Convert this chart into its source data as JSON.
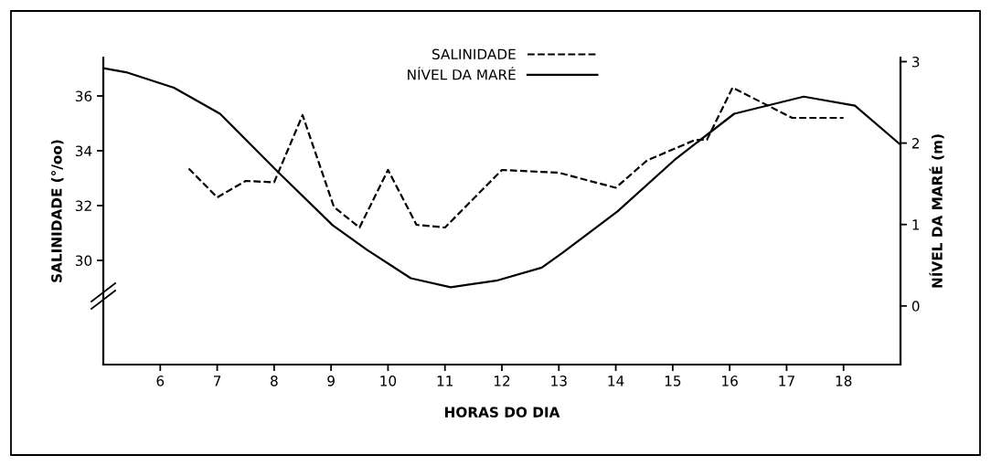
{
  "chart_data": {
    "type": "line",
    "xlabel": "HORAS DO DIA",
    "ylabel": "SALINIDADE (°/oo)",
    "y2label": "NÍVEL DA MARÉ (m)",
    "xlim": [
      5,
      19
    ],
    "xticks": [
      6,
      7,
      8,
      9,
      10,
      11,
      12,
      13,
      14,
      15,
      16,
      17,
      18
    ],
    "ylim": [
      26.2,
      37.4
    ],
    "yticks": [
      30,
      32,
      34,
      36
    ],
    "y2lim": [
      -0.72,
      3.05
    ],
    "y2ticks": [
      0,
      1,
      2,
      3
    ],
    "legend": "top",
    "grid": false,
    "series": [
      {
        "name": "SALINIDADE",
        "color": "#000000",
        "line_style": "dashed",
        "x": [
          6.5,
          7.0,
          7.5,
          8.0,
          8.5,
          9.05,
          9.5,
          10.0,
          10.5,
          11.0,
          12.0,
          13.0,
          14.0,
          14.55,
          15.4,
          15.6,
          16.05,
          17.1,
          18.0
        ],
        "values": [
          33.35,
          32.3,
          32.9,
          32.85,
          35.3,
          31.95,
          31.2,
          33.3,
          31.3,
          31.2,
          33.3,
          33.2,
          32.65,
          33.65,
          34.4,
          34.4,
          36.3,
          35.2,
          35.2
        ]
      },
      {
        "name": "NÍVEL DA MARÉ",
        "color": "#000000",
        "line_style": "solid",
        "axis": "y2",
        "x": [
          5.0,
          5.4,
          6.24,
          7.05,
          8.06,
          9.03,
          9.63,
          10.4,
          11.1,
          11.9,
          12.7,
          13.06,
          14.03,
          15.06,
          16.08,
          17.3,
          18.2,
          19.0
        ],
        "values": [
          2.92,
          2.87,
          2.68,
          2.36,
          1.65,
          0.99,
          0.69,
          0.34,
          0.23,
          0.31,
          0.47,
          0.65,
          1.16,
          1.81,
          2.36,
          2.57,
          2.46,
          1.98
        ]
      }
    ]
  }
}
